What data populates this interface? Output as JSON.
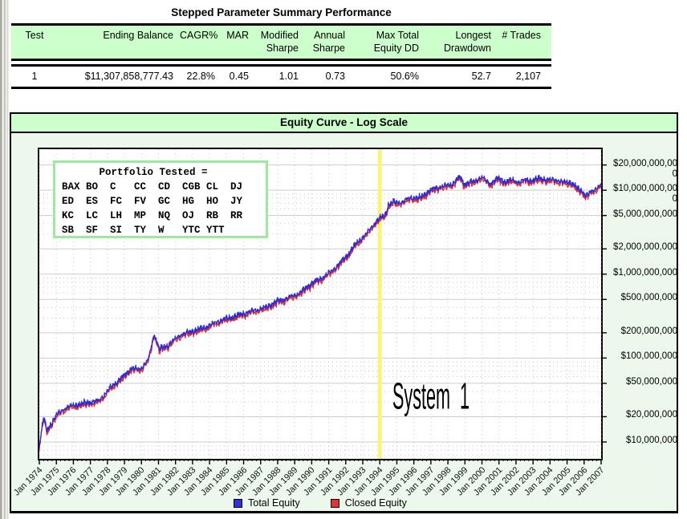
{
  "summary_table": {
    "title": "Stepped Parameter Summary Performance",
    "columns": [
      "Test",
      "Ending Balance",
      "CAGR%",
      "MAR",
      "Modified\nSharpe",
      "Annual\nSharpe",
      "Max Total\nEquity DD",
      "Longest\nDrawdown",
      "# Trades"
    ],
    "rows": [
      [
        "1",
        "$11,307,858,777.43",
        "22.8%",
        "0.45",
        "1.01",
        "0.73",
        "50.6%",
        "52.7",
        "2,107"
      ]
    ]
  },
  "chart": {
    "title": "Equity Curve - Log Scale",
    "annotation": "System  1",
    "portfolio_box": {
      "title": "Portfolio Tested =",
      "rows": [
        [
          "BAX",
          "BO",
          "C",
          "CC",
          "CD",
          "CGB",
          "CL",
          "DJ"
        ],
        [
          "ED",
          "ES",
          "FC",
          "FV",
          "GC",
          "HG",
          "HO",
          "JY"
        ],
        [
          "KC",
          "LC",
          "LH",
          "MP",
          "NQ",
          "OJ",
          "RB",
          "RR"
        ],
        [
          "SB",
          "SF",
          "SI",
          "TY",
          "W",
          "YTC",
          "YTT"
        ]
      ]
    },
    "legend": [
      {
        "label": "Total Equity",
        "color": "#3030d8"
      },
      {
        "label": "Closed Equity",
        "color": "#e83030"
      }
    ]
  },
  "chart_data": {
    "type": "line",
    "title": "Equity Curve - Log Scale",
    "x_axis": {
      "label_format": "Jan YYYY",
      "start_year": 1974,
      "end_year": 2007,
      "tick_labels": [
        "Jan 1974",
        "Jan 1975",
        "Jan 1976",
        "Jan 1977",
        "Jan 1978",
        "Jan 1979",
        "Jan 1980",
        "Jan 1981",
        "Jan 1982",
        "Jan 1983",
        "Jan 1984",
        "Jan 1985",
        "Jan 1986",
        "Jan 1987",
        "Jan 1988",
        "Jan 1989",
        "Jan 1990",
        "Jan 1991",
        "Jan 1992",
        "Jan 1993",
        "Jan 1994",
        "Jan 1995",
        "Jan 1996",
        "Jan 1997",
        "Jan 1998",
        "Jan 1999",
        "Jan 2000",
        "Jan 2001",
        "Jan 2002",
        "Jan 2003",
        "Jan 2004",
        "Jan 2005",
        "Jan 2006",
        "Jan 2007"
      ]
    },
    "y_axis": {
      "scale": "log",
      "tick_labels": [
        "$20,000,000,000",
        "$10,000,000,000",
        "$5,000,000,000",
        "$2,000,000,000",
        "$1,000,000,000",
        "$500,000,000",
        "$200,000,000",
        "$100,000,000",
        "$50,000,000",
        "$20,000,000",
        "$10,000,000"
      ],
      "tick_values": [
        20000000000,
        10000000000,
        5000000000,
        2000000000,
        1000000000,
        500000000,
        200000000,
        100000000,
        50000000,
        20000000,
        10000000
      ],
      "range_bottom": 6300000,
      "range_top": 31000000000
    },
    "marker_line": {
      "x_year": 1994,
      "color": "#fbf27a"
    },
    "grid": {
      "solid_major": true,
      "dotted_minor": true
    },
    "series": [
      {
        "name": "Total Equity",
        "color": "#2c2cd8",
        "anchors_year_valueM": [
          [
            1974.0,
            9
          ],
          [
            1974.25,
            20
          ],
          [
            1974.45,
            13.5
          ],
          [
            1975.0,
            21
          ],
          [
            1975.6,
            26
          ],
          [
            1976.3,
            28
          ],
          [
            1977.0,
            30
          ],
          [
            1977.5,
            31
          ],
          [
            1978.2,
            45
          ],
          [
            1979.0,
            62
          ],
          [
            1979.4,
            76
          ],
          [
            1979.9,
            73
          ],
          [
            1980.4,
            95
          ],
          [
            1980.75,
            195
          ],
          [
            1981.05,
            128
          ],
          [
            1981.5,
            140
          ],
          [
            1982.3,
            190
          ],
          [
            1983.0,
            210
          ],
          [
            1983.7,
            230
          ],
          [
            1984.6,
            280
          ],
          [
            1985.6,
            320
          ],
          [
            1986.5,
            365
          ],
          [
            1987.3,
            400
          ],
          [
            1988.0,
            480
          ],
          [
            1988.6,
            520
          ],
          [
            1989.3,
            600
          ],
          [
            1990.0,
            780
          ],
          [
            1990.6,
            900
          ],
          [
            1991.2,
            1100
          ],
          [
            1992.0,
            1600
          ],
          [
            1992.6,
            2300
          ],
          [
            1993.2,
            3000
          ],
          [
            1993.8,
            4300
          ],
          [
            1994.1,
            4800
          ],
          [
            1994.3,
            5000
          ],
          [
            1994.5,
            6600
          ],
          [
            1994.8,
            7200
          ],
          [
            1995.3,
            7200
          ],
          [
            1995.8,
            8200
          ],
          [
            1996.3,
            8000
          ],
          [
            1996.8,
            9500
          ],
          [
            1997.3,
            10800
          ],
          [
            1997.8,
            11200
          ],
          [
            1998.3,
            12000
          ],
          [
            1998.7,
            14500
          ],
          [
            1999.0,
            11800
          ],
          [
            1999.5,
            12800
          ],
          [
            2000.0,
            14200
          ],
          [
            2000.5,
            12000
          ],
          [
            2001.0,
            14000
          ],
          [
            2001.4,
            12400
          ],
          [
            2001.8,
            13400
          ],
          [
            2002.2,
            12300
          ],
          [
            2002.6,
            13600
          ],
          [
            2003.0,
            12800
          ],
          [
            2003.4,
            14300
          ],
          [
            2003.8,
            12900
          ],
          [
            2004.2,
            13800
          ],
          [
            2004.6,
            12400
          ],
          [
            2005.0,
            12900
          ],
          [
            2005.4,
            11400
          ],
          [
            2005.8,
            10200
          ],
          [
            2006.1,
            8400
          ],
          [
            2006.4,
            9800
          ],
          [
            2006.7,
            10400
          ],
          [
            2007.0,
            11300
          ]
        ]
      },
      {
        "name": "Closed Equity",
        "color": "#e23030",
        "derived_from": "Total Equity",
        "typical_gap_pct": 5
      }
    ]
  }
}
